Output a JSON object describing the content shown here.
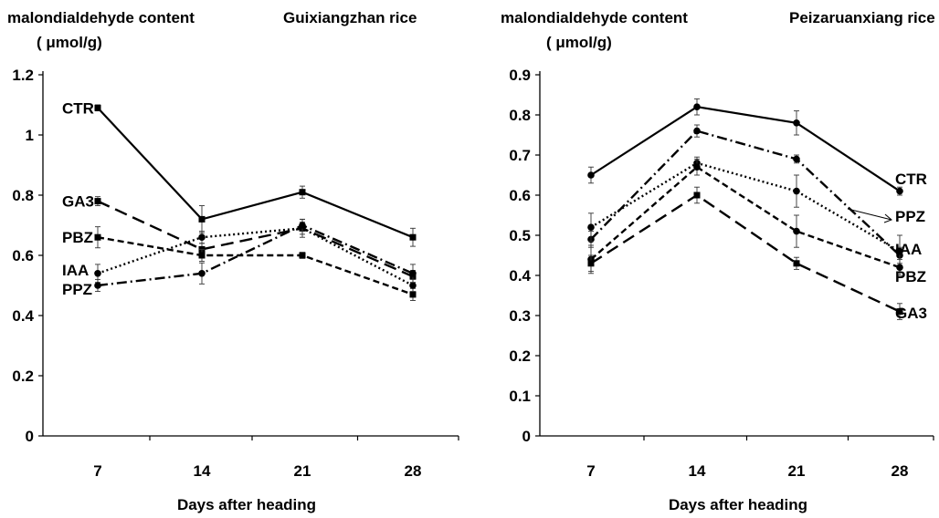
{
  "chart_data": [
    {
      "type": "line",
      "title": "Guixiangzhan rice",
      "ylabel_line1": "malondialdehyde content",
      "ylabel_line2": "( μmol/g)",
      "xlabel": "Days after heading",
      "categories": [
        "7",
        "14",
        "21",
        "28"
      ],
      "ylim": [
        0,
        1.2
      ],
      "yticks": [
        "0",
        "0.2",
        "0.4",
        "0.6",
        "0.8",
        "1",
        "1.2"
      ],
      "grid": false,
      "series": [
        {
          "name": "CTR",
          "values": [
            1.09,
            0.72,
            0.81,
            0.66
          ],
          "errors": [
            0.01,
            0.045,
            0.02,
            0.03
          ],
          "style": "solid",
          "marker": "square"
        },
        {
          "name": "GA3",
          "values": [
            0.78,
            0.62,
            0.69,
            0.53
          ],
          "errors": [
            0.015,
            0.02,
            0.02,
            0.02
          ],
          "style": "longdash",
          "marker": "square"
        },
        {
          "name": "PBZ",
          "values": [
            0.66,
            0.6,
            0.6,
            0.47
          ],
          "errors": [
            0.035,
            0.02,
            0.01,
            0.02
          ],
          "style": "dash",
          "marker": "square"
        },
        {
          "name": "IAA",
          "values": [
            0.54,
            0.66,
            0.69,
            0.5
          ],
          "errors": [
            0.03,
            0.02,
            0.03,
            0.02
          ],
          "style": "dot",
          "marker": "circle"
        },
        {
          "name": "PPZ",
          "values": [
            0.5,
            0.54,
            0.7,
            0.54
          ],
          "errors": [
            0.02,
            0.035,
            0.02,
            0.03
          ],
          "style": "dashdot",
          "marker": "circle"
        }
      ]
    },
    {
      "type": "line",
      "title": "Peizaruanxiang rice",
      "ylabel_line1": "malondialdehyde content",
      "ylabel_line2": "( μmol/g)",
      "xlabel": "Days after heading",
      "categories": [
        "7",
        "14",
        "21",
        "28"
      ],
      "ylim": [
        0,
        0.9
      ],
      "yticks": [
        "0",
        "0.1",
        "0.2",
        "0.3",
        "0.4",
        "0.5",
        "0.6",
        "0.7",
        "0.8",
        "0.9"
      ],
      "grid": false,
      "series": [
        {
          "name": "CTR",
          "values": [
            0.65,
            0.82,
            0.78,
            0.61
          ],
          "errors": [
            0.02,
            0.02,
            0.03,
            0.01
          ],
          "style": "solid",
          "marker": "circle"
        },
        {
          "name": "PPZ",
          "values": [
            0.49,
            0.76,
            0.69,
            0.45
          ],
          "errors": [
            0.02,
            0.015,
            0.01,
            0.02
          ],
          "style": "dashdot",
          "marker": "circle"
        },
        {
          "name": "IAA",
          "values": [
            0.52,
            0.68,
            0.61,
            0.46
          ],
          "errors": [
            0.035,
            0.015,
            0.04,
            0.04
          ],
          "style": "dot",
          "marker": "circle"
        },
        {
          "name": "PBZ",
          "values": [
            0.44,
            0.67,
            0.51,
            0.42
          ],
          "errors": [
            0.035,
            0.02,
            0.04,
            0.02
          ],
          "style": "dash",
          "marker": "circle"
        },
        {
          "name": "GA3",
          "values": [
            0.43,
            0.6,
            0.43,
            0.31
          ],
          "errors": [
            0.02,
            0.02,
            0.015,
            0.02
          ],
          "style": "longdash",
          "marker": "square"
        }
      ]
    }
  ]
}
